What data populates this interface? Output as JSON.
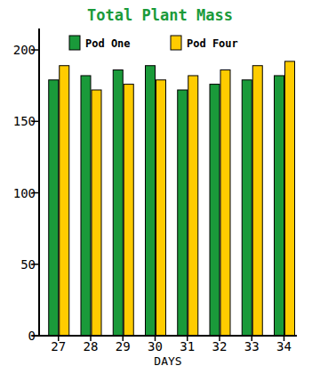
{
  "chart_data": {
    "type": "bar",
    "title": "Total Plant Mass",
    "x_label": "DAYS",
    "categories": [
      "27",
      "28",
      "29",
      "30",
      "31",
      "32",
      "33",
      "34"
    ],
    "series": [
      {
        "name": "Pod One",
        "color": "#1a9a3a",
        "values": [
          179,
          182,
          186,
          189,
          172,
          176,
          179,
          182
        ]
      },
      {
        "name": "Pod Four",
        "color": "#ffcc00",
        "values": [
          189,
          172,
          176,
          179,
          182,
          186,
          189,
          192
        ]
      }
    ],
    "ylim": [
      0,
      215
    ],
    "yticks": [
      0,
      50,
      100,
      150,
      200
    ],
    "grid": false,
    "legend": "top"
  }
}
